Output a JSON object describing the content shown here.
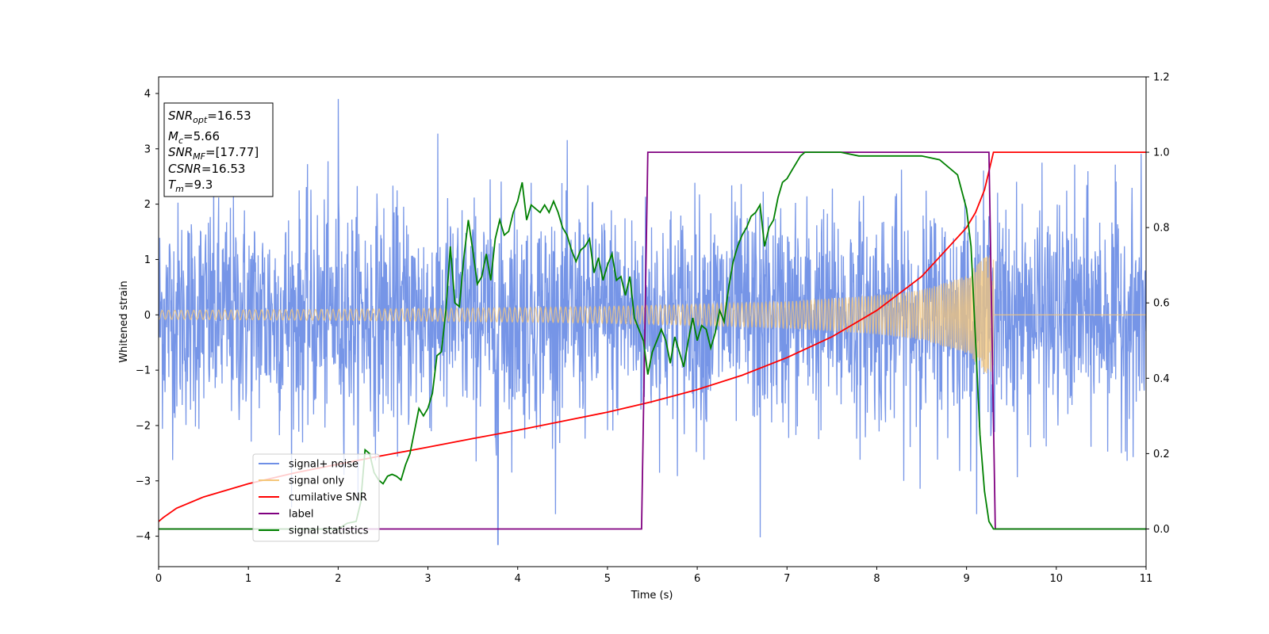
{
  "chart_data": {
    "type": "line",
    "xlabel": "Time (s)",
    "ylabel": "Whitened strain",
    "xlim": [
      0,
      11
    ],
    "ylim_left": [
      -4.55,
      4.3
    ],
    "ylim_right": [
      -0.1,
      1.2
    ],
    "x_ticks": [
      0,
      1,
      2,
      3,
      4,
      5,
      6,
      7,
      8,
      9,
      10,
      11
    ],
    "y_ticks_left": [
      -4,
      -3,
      -2,
      -1,
      0,
      1,
      2,
      3,
      4
    ],
    "y_ticks_left_labels": [
      "−4",
      "−3",
      "−2",
      "−1",
      "0",
      "1",
      "2",
      "3",
      "4"
    ],
    "y_ticks_right": [
      0.0,
      0.2,
      0.4,
      0.6,
      0.8,
      1.0,
      1.2
    ],
    "y_ticks_right_labels": [
      "0.0",
      "0.2",
      "0.4",
      "0.6",
      "0.8",
      "1.0",
      "1.2"
    ],
    "grid": false,
    "legend_position": "lower-left",
    "info_box": {
      "position": "top-left",
      "lines": [
        {
          "sym": "SNR",
          "sub": "opt",
          "val": "=16.53"
        },
        {
          "sym": "M",
          "sub": "c",
          "val": "=5.66"
        },
        {
          "sym": "SNR",
          "sub": "MF",
          "val": "=[17.77]"
        },
        {
          "sym": "CSNR",
          "sub": "",
          "val": "=16.53"
        },
        {
          "sym": "T",
          "sub": "m",
          "val": "=9.3"
        }
      ]
    },
    "series": [
      {
        "name": "signal+ noise",
        "axis": "left",
        "color": "#6f8fe6",
        "kind": "noise",
        "noise_sigma": 1.0,
        "x_range": [
          0,
          11
        ],
        "notes_extremes": [
          [
            2.0,
            3.9
          ],
          [
            3.78,
            -4.15
          ],
          [
            6.7,
            -4.02
          ]
        ]
      },
      {
        "name": "signal only",
        "axis": "left",
        "color": "#f5c77a",
        "kind": "chirp",
        "x_range": [
          0,
          9.3
        ],
        "amplitude_envelope": [
          [
            0,
            0.08
          ],
          [
            2,
            0.1
          ],
          [
            4,
            0.13
          ],
          [
            5,
            0.15
          ],
          [
            6,
            0.19
          ],
          [
            7,
            0.24
          ],
          [
            8,
            0.35
          ],
          [
            8.5,
            0.45
          ],
          [
            9.0,
            0.7
          ],
          [
            9.2,
            1.05
          ],
          [
            9.3,
            1.1
          ]
        ],
        "after_merger_value": 0.0
      },
      {
        "name": "cumilative SNR",
        "axis": "right",
        "color": "#ff0000",
        "x": [
          0,
          0.05,
          0.2,
          0.5,
          1,
          1.5,
          2,
          2.5,
          3,
          3.5,
          4,
          4.5,
          5,
          5.5,
          6,
          6.5,
          7,
          7.5,
          8,
          8.5,
          9,
          9.1,
          9.2,
          9.3,
          9.31,
          11
        ],
        "y": [
          0.02,
          0.03,
          0.055,
          0.085,
          0.12,
          0.148,
          0.172,
          0.195,
          0.217,
          0.24,
          0.262,
          0.286,
          0.31,
          0.338,
          0.37,
          0.408,
          0.455,
          0.51,
          0.58,
          0.67,
          0.8,
          0.84,
          0.9,
          1.0,
          1.0,
          1.0
        ]
      },
      {
        "name": "label",
        "axis": "right",
        "color": "#800080",
        "x": [
          0,
          5.38,
          5.45,
          9.25,
          9.32,
          11
        ],
        "y": [
          0.0,
          0.0,
          1.0,
          1.0,
          0.0,
          0.0
        ]
      },
      {
        "name": "signal statistics",
        "axis": "right",
        "color": "#008000",
        "x": [
          0,
          1.9,
          2.0,
          2.1,
          2.2,
          2.25,
          2.3,
          2.35,
          2.4,
          2.45,
          2.5,
          2.55,
          2.6,
          2.65,
          2.7,
          2.75,
          2.8,
          2.85,
          2.9,
          2.95,
          3.0,
          3.05,
          3.1,
          3.15,
          3.2,
          3.25,
          3.3,
          3.35,
          3.4,
          3.45,
          3.5,
          3.55,
          3.6,
          3.65,
          3.7,
          3.75,
          3.8,
          3.85,
          3.9,
          3.95,
          4.0,
          4.05,
          4.1,
          4.15,
          4.2,
          4.25,
          4.3,
          4.35,
          4.4,
          4.45,
          4.5,
          4.55,
          4.6,
          4.65,
          4.7,
          4.75,
          4.8,
          4.85,
          4.9,
          4.95,
          5.0,
          5.05,
          5.1,
          5.15,
          5.2,
          5.25,
          5.3,
          5.35,
          5.4,
          5.45,
          5.5,
          5.55,
          5.6,
          5.65,
          5.7,
          5.75,
          5.8,
          5.85,
          5.9,
          5.95,
          6.0,
          6.05,
          6.1,
          6.15,
          6.2,
          6.25,
          6.3,
          6.35,
          6.4,
          6.45,
          6.5,
          6.55,
          6.6,
          6.65,
          6.7,
          6.75,
          6.8,
          6.85,
          6.9,
          6.95,
          7.0,
          7.05,
          7.1,
          7.15,
          7.2,
          7.3,
          7.4,
          7.5,
          7.6,
          7.8,
          8.0,
          8.3,
          8.5,
          8.7,
          8.9,
          9.0,
          9.05,
          9.1,
          9.15,
          9.2,
          9.25,
          9.3,
          9.35,
          9.4,
          9.5,
          11
        ],
        "y": [
          0.0,
          0.0,
          0.0,
          0.015,
          0.02,
          0.07,
          0.21,
          0.2,
          0.15,
          0.13,
          0.12,
          0.14,
          0.145,
          0.14,
          0.13,
          0.17,
          0.2,
          0.26,
          0.32,
          0.3,
          0.32,
          0.36,
          0.46,
          0.47,
          0.58,
          0.75,
          0.6,
          0.59,
          0.72,
          0.82,
          0.74,
          0.65,
          0.67,
          0.73,
          0.66,
          0.77,
          0.82,
          0.78,
          0.79,
          0.84,
          0.87,
          0.92,
          0.82,
          0.86,
          0.85,
          0.84,
          0.86,
          0.84,
          0.87,
          0.84,
          0.8,
          0.78,
          0.74,
          0.71,
          0.74,
          0.75,
          0.77,
          0.68,
          0.72,
          0.66,
          0.7,
          0.73,
          0.66,
          0.67,
          0.62,
          0.67,
          0.56,
          0.53,
          0.5,
          0.41,
          0.47,
          0.5,
          0.53,
          0.5,
          0.44,
          0.51,
          0.47,
          0.43,
          0.5,
          0.56,
          0.5,
          0.54,
          0.53,
          0.48,
          0.52,
          0.58,
          0.55,
          0.64,
          0.71,
          0.75,
          0.78,
          0.8,
          0.83,
          0.84,
          0.86,
          0.75,
          0.8,
          0.82,
          0.88,
          0.92,
          0.93,
          0.95,
          0.97,
          0.99,
          1.0,
          1.0,
          1.0,
          1.0,
          1.0,
          0.99,
          0.99,
          0.99,
          0.99,
          0.98,
          0.94,
          0.85,
          0.75,
          0.5,
          0.25,
          0.1,
          0.02,
          0.0,
          0.0,
          0.0,
          0.0,
          0.0
        ]
      }
    ]
  }
}
